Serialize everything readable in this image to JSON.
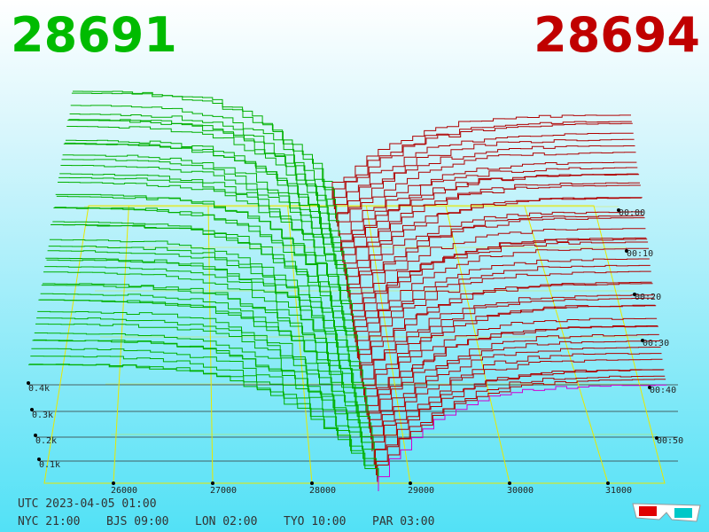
{
  "header": {
    "bid": "28691",
    "ask": "28694"
  },
  "price_axis": {
    "labels": [
      "26000",
      "27000",
      "28000",
      "29000",
      "30000",
      "31000"
    ]
  },
  "depth_axis": {
    "labels": [
      "0.1k",
      "0.2k",
      "0.3k",
      "0.4k"
    ]
  },
  "time_axis": {
    "labels": [
      "00:00",
      "00:10",
      "00:20",
      "00:30",
      "00:40",
      "00:50"
    ]
  },
  "footer": {
    "utc": "UTC 2023-04-05 01:00",
    "clocks": [
      "NYC 21:00",
      "BJS 09:00",
      "LON 02:00",
      "TYO 10:00",
      "PAR 03:00"
    ]
  }
}
